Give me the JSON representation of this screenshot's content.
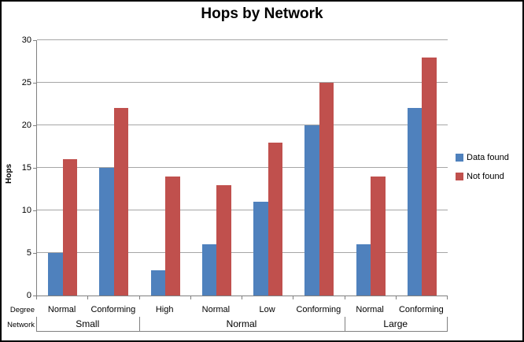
{
  "chart_data": {
    "type": "bar",
    "title": "Hops by Network",
    "ylabel": "Hops",
    "ylim": [
      0,
      30
    ],
    "yticks": [
      0,
      5,
      10,
      15,
      20,
      25,
      30
    ],
    "grid": true,
    "legend_position": "right",
    "axis_levels": {
      "level1": "Degree",
      "level2": "Network"
    },
    "categories": [
      "Normal",
      "Conforming",
      "High",
      "Normal",
      "Low",
      "Conforming",
      "Normal",
      "Conforming"
    ],
    "group_labels": [
      {
        "label": "Small",
        "span": 2
      },
      {
        "label": "Normal",
        "span": 4
      },
      {
        "label": "Large",
        "span": 2
      }
    ],
    "series": [
      {
        "name": "Data found",
        "color": "#4F81BD",
        "values": [
          5,
          15,
          3,
          6,
          11,
          20,
          6,
          22
        ]
      },
      {
        "name": "Not found",
        "color": "#C0504D",
        "values": [
          16,
          22,
          14,
          13,
          18,
          25,
          14,
          28
        ]
      }
    ]
  },
  "colors": {
    "gridline": "#A6A6A6",
    "axis_line": "#808080",
    "text": "#000000",
    "background": "#FFFFFF",
    "border": "#000000"
  }
}
